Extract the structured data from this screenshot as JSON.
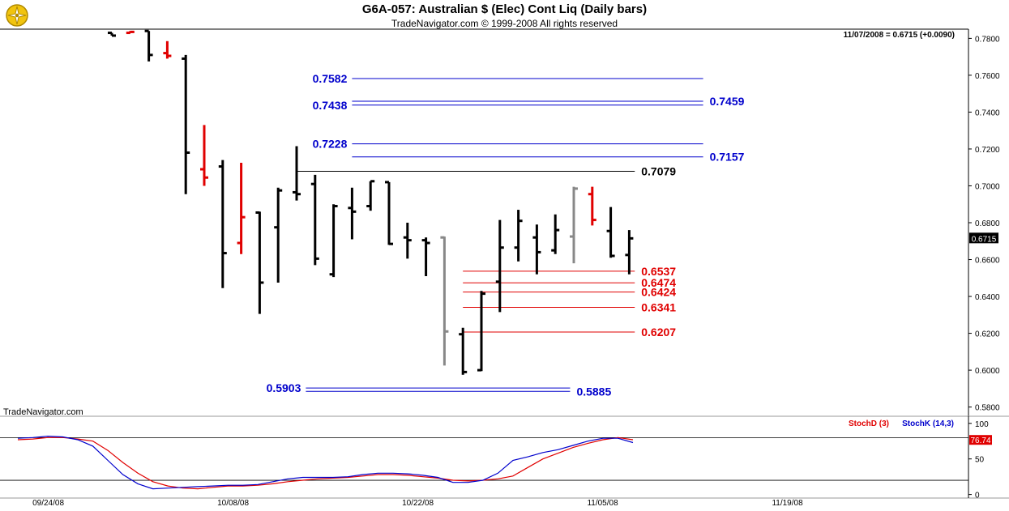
{
  "header": {
    "title": "G6A-057:  Australian $ (Elec) Cont Liq  (Daily bars)",
    "subtitle": "TradeNavigator.com © 1999-2008 All rights reserved"
  },
  "quote": "11/07/2008 = 0.6715 (+0.0090)",
  "watermark": "TradeNavigator.com",
  "colors": {
    "bar_default": "#000000",
    "bar_down": "#e00000",
    "bar_up": "#22dd22",
    "bar_gray": "#888888",
    "level_blue": "#0000cc",
    "level_red": "#e00000",
    "stoch_d": "#e00000",
    "stoch_k": "#0000cc"
  },
  "chart_data": [
    {
      "type": "ohlc",
      "ylim": [
        0.575,
        0.785
      ],
      "y_ticks": [
        "0.7800",
        "0.7600",
        "0.7400",
        "0.7200",
        "0.7000",
        "0.6800",
        "0.6600",
        "0.6400",
        "0.6200",
        "0.6000",
        "0.5800"
      ],
      "last_price": "0.6715",
      "bars": [
        {
          "i": 0,
          "o": 0.783,
          "h": 0.783,
          "l": 0.7815,
          "c": 0.7815,
          "col": "k"
        },
        {
          "i": 1,
          "o": 0.783,
          "h": 0.784,
          "l": 0.783,
          "c": 0.7835,
          "col": "r"
        },
        {
          "i": 2,
          "o": 0.784,
          "h": 0.784,
          "l": 0.7675,
          "c": 0.771,
          "col": "k"
        },
        {
          "i": 3,
          "o": 0.772,
          "h": 0.7785,
          "l": 0.769,
          "c": 0.7705,
          "col": "r"
        },
        {
          "i": 4,
          "o": 0.769,
          "h": 0.771,
          "l": 0.6955,
          "c": 0.718,
          "col": "k"
        },
        {
          "i": 5,
          "o": 0.709,
          "h": 0.733,
          "l": 0.7,
          "c": 0.7045,
          "col": "r"
        },
        {
          "i": 6,
          "o": 0.7105,
          "h": 0.714,
          "l": 0.6445,
          "c": 0.6635,
          "col": "k"
        },
        {
          "i": 7,
          "o": 0.669,
          "h": 0.7125,
          "l": 0.663,
          "c": 0.683,
          "col": "r"
        },
        {
          "i": 8,
          "o": 0.6855,
          "h": 0.686,
          "l": 0.6305,
          "c": 0.6475,
          "col": "k"
        },
        {
          "i": 9,
          "o": 0.6775,
          "h": 0.699,
          "l": 0.6475,
          "c": 0.6975,
          "col": "k"
        },
        {
          "i": 10,
          "o": 0.6965,
          "h": 0.7215,
          "l": 0.692,
          "c": 0.6955,
          "col": "k"
        },
        {
          "i": 11,
          "o": 0.701,
          "h": 0.706,
          "l": 0.657,
          "c": 0.6605,
          "col": "k"
        },
        {
          "i": 12,
          "o": 0.652,
          "h": 0.69,
          "l": 0.6505,
          "c": 0.689,
          "col": "k"
        },
        {
          "i": 13,
          "o": 0.688,
          "h": 0.699,
          "l": 0.671,
          "c": 0.686,
          "col": "k"
        },
        {
          "i": 14,
          "o": 0.689,
          "h": 0.7025,
          "l": 0.6865,
          "c": 0.7025,
          "col": "k"
        },
        {
          "i": 15,
          "o": 0.702,
          "h": 0.702,
          "l": 0.668,
          "c": 0.6685,
          "col": "k"
        },
        {
          "i": 16,
          "o": 0.672,
          "h": 0.68,
          "l": 0.6605,
          "c": 0.6705,
          "col": "k"
        },
        {
          "i": 17,
          "o": 0.6705,
          "h": 0.672,
          "l": 0.651,
          "c": 0.669,
          "col": "k"
        },
        {
          "i": 18,
          "o": 0.672,
          "h": 0.6725,
          "l": 0.6025,
          "c": 0.621,
          "col": "g"
        },
        {
          "i": 19,
          "o": 0.6195,
          "h": 0.623,
          "l": 0.5975,
          "c": 0.599,
          "col": "k"
        },
        {
          "i": 20,
          "o": 0.6,
          "h": 0.643,
          "l": 0.5995,
          "c": 0.6415,
          "col": "k"
        },
        {
          "i": 21,
          "o": 0.648,
          "h": 0.6815,
          "l": 0.6315,
          "c": 0.6665,
          "col": "k"
        },
        {
          "i": 22,
          "o": 0.6665,
          "h": 0.687,
          "l": 0.659,
          "c": 0.681,
          "col": "k"
        },
        {
          "i": 23,
          "o": 0.672,
          "h": 0.679,
          "l": 0.652,
          "c": 0.664,
          "col": "k"
        },
        {
          "i": 24,
          "o": 0.665,
          "h": 0.6845,
          "l": 0.663,
          "c": 0.676,
          "col": "k"
        },
        {
          "i": 25,
          "o": 0.6725,
          "h": 0.6995,
          "l": 0.658,
          "c": 0.6985,
          "col": "g"
        },
        {
          "i": 26,
          "o": 0.6955,
          "h": 0.6995,
          "l": 0.6785,
          "c": 0.6815,
          "col": "r"
        },
        {
          "i": 27,
          "o": 0.6755,
          "h": 0.6885,
          "l": 0.661,
          "c": 0.662,
          "col": "k"
        },
        {
          "i": 28,
          "o": 0.6625,
          "h": 0.676,
          "l": 0.652,
          "c": 0.6715,
          "col": "k"
        }
      ],
      "levels": [
        {
          "value": 0.7582,
          "label": "0.7582",
          "color": "blue",
          "from": 13,
          "to": 32,
          "side": "left"
        },
        {
          "value": 0.7459,
          "label": "0.7459",
          "color": "blue",
          "from": 13,
          "to": 32,
          "side": "right"
        },
        {
          "value": 0.7438,
          "label": "0.7438",
          "color": "blue",
          "from": 13,
          "to": 32,
          "side": "left"
        },
        {
          "value": 0.7228,
          "label": "0.7228",
          "color": "blue",
          "from": 13,
          "to": 32,
          "side": "left"
        },
        {
          "value": 0.7157,
          "label": "0.7157",
          "color": "blue",
          "from": 13,
          "to": 32,
          "side": "right"
        },
        {
          "value": 0.7079,
          "label": "0.7079",
          "color": "black",
          "from": 10,
          "to": 28.3,
          "side": "right"
        },
        {
          "value": 0.6537,
          "label": "0.6537",
          "color": "red",
          "from": 19,
          "to": 28.3,
          "side": "right"
        },
        {
          "value": 0.6474,
          "label": "0.6474",
          "color": "red",
          "from": 19,
          "to": 28.3,
          "side": "right"
        },
        {
          "value": 0.6424,
          "label": "0.6424",
          "color": "red",
          "from": 19,
          "to": 28.3,
          "side": "right"
        },
        {
          "value": 0.6341,
          "label": "0.6341",
          "color": "red",
          "from": 19,
          "to": 28.3,
          "side": "right"
        },
        {
          "value": 0.6207,
          "label": "0.6207",
          "color": "red",
          "from": 19,
          "to": 28.3,
          "side": "right"
        },
        {
          "value": 0.5903,
          "label": "0.5903",
          "color": "blue",
          "from": 10.5,
          "to": 24.8,
          "side": "left"
        },
        {
          "value": 0.5885,
          "label": "0.5885",
          "color": "blue",
          "from": 10.5,
          "to": 24.8,
          "side": "right"
        }
      ],
      "x_ticks": [
        {
          "i": 0.2,
          "label": "09/24/08"
        },
        {
          "i": 10.2,
          "label": "10/08/08"
        },
        {
          "i": 20.2,
          "label": "10/22/08"
        },
        {
          "i": 30.2,
          "label": "11/05/08"
        },
        {
          "i": 40.2,
          "label": "11/19/08"
        }
      ]
    },
    {
      "type": "line",
      "legend": [
        "StochD (3)",
        "StochK (14,3)"
      ],
      "ylim": [
        -5,
        110
      ],
      "y_ticks": [
        "100",
        "50",
        "0"
      ],
      "last_value": "76.74",
      "series": [
        {
          "name": "StochD (3)",
          "color": "red",
          "values": [
            77,
            78,
            80,
            80,
            78,
            75,
            62,
            45,
            30,
            18,
            12,
            9,
            8,
            10,
            12,
            12,
            13,
            15,
            18,
            20,
            22,
            23,
            24,
            26,
            28,
            28,
            27,
            25,
            23,
            20,
            19,
            20,
            22,
            26,
            38,
            50,
            58,
            66,
            72,
            77,
            80,
            77
          ]
        },
        {
          "name": "StochK (14,3)",
          "color": "blue",
          "values": [
            79,
            80,
            82,
            81,
            77,
            68,
            48,
            28,
            15,
            8,
            9,
            10,
            11,
            12,
            13,
            13,
            14,
            18,
            22,
            24,
            24,
            24,
            25,
            28,
            30,
            30,
            29,
            27,
            24,
            17,
            17,
            20,
            30,
            48,
            53,
            59,
            63,
            69,
            75,
            79,
            79,
            73
          ]
        }
      ]
    }
  ]
}
